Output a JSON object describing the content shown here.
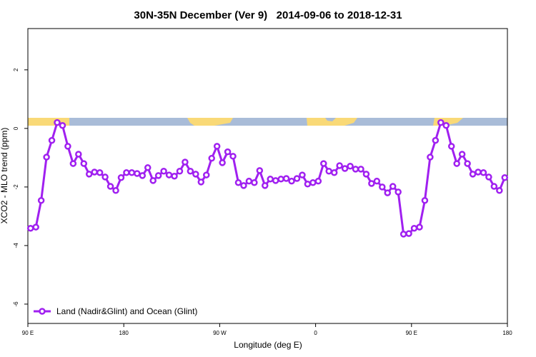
{
  "chart_data": {
    "type": "line",
    "title": "30N-35N December (Ver 9)   2014-09-06 to 2018-12-31",
    "x_label": "Longitude (deg E)",
    "y_label": "XCO2 - MLO trend (ppm)",
    "x": [
      92.5,
      97.5,
      102.5,
      107.5,
      112.5,
      117.5,
      122.5,
      127.5,
      132.5,
      137.5,
      142.5,
      147.5,
      152.5,
      157.5,
      162.5,
      167.5,
      172.5,
      177.5,
      182.5,
      187.5,
      192.5,
      197.5,
      202.5,
      207.5,
      212.5,
      217.5,
      222.5,
      227.5,
      232.5,
      237.5,
      242.5,
      247.5,
      252.5,
      257.5,
      262.5,
      267.5,
      272.5,
      277.5,
      282.5,
      287.5,
      292.5,
      297.5,
      302.5,
      307.5,
      312.5,
      317.5,
      322.5,
      327.5,
      332.5,
      337.5,
      342.5,
      347.5,
      352.5,
      357.5,
      362.5,
      367.5,
      372.5,
      377.5,
      382.5,
      387.5,
      392.5,
      397.5,
      402.5,
      407.5,
      412.5,
      417.5,
      422.5,
      427.5,
      432.5,
      437.5,
      442.5,
      447.5,
      452.5,
      457.5,
      462.5,
      467.5,
      472.5,
      477.5,
      482.5,
      487.5,
      492.5,
      497.5,
      502.5,
      507.5,
      512.5,
      517.5,
      522.5,
      527.5,
      532.5,
      537.5
    ],
    "series": [
      {
        "name": "Land (Nadir&Glint) and Ocean (Glint)",
        "color": "#a020f0",
        "values": [
          -3.41,
          -3.37,
          -2.46,
          -0.98,
          -0.41,
          0.2,
          0.1,
          -0.61,
          -1.2,
          -0.88,
          -1.2,
          -1.56,
          -1.49,
          -1.51,
          -1.66,
          -1.98,
          -2.12,
          -1.68,
          -1.51,
          -1.51,
          -1.54,
          -1.61,
          -1.34,
          -1.78,
          -1.61,
          -1.46,
          -1.59,
          -1.63,
          -1.46,
          -1.15,
          -1.46,
          -1.56,
          -1.83,
          -1.59,
          -1.02,
          -0.61,
          -1.17,
          -0.8,
          -0.95,
          -1.85,
          -1.95,
          -1.8,
          -1.85,
          -1.44,
          -1.95,
          -1.73,
          -1.78,
          -1.73,
          -1.71,
          -1.8,
          -1.71,
          -1.59,
          -1.9,
          -1.85,
          -1.8,
          -1.2,
          -1.46,
          -1.51,
          -1.27,
          -1.37,
          -1.29,
          -1.39,
          -1.39,
          -1.56,
          -1.88,
          -1.8,
          -2.0,
          -2.2,
          -1.98,
          -2.17,
          -3.61,
          -3.59,
          -3.41,
          -3.37,
          -2.46,
          -0.98,
          -0.41,
          0.2,
          0.1,
          -0.61,
          -1.2,
          -0.88,
          -1.2,
          -1.56,
          -1.49,
          -1.51,
          -1.66,
          -1.98,
          -2.12,
          -1.68
        ]
      }
    ],
    "xlim": [
      90,
      540
    ],
    "xticks": [
      {
        "value": 90,
        "label": "90 E"
      },
      180,
      {
        "value": 270,
        "label": "90 W"
      },
      {
        "value": 360,
        "label": "0"
      },
      {
        "value": 450,
        "label": "90 E"
      },
      {
        "value": 540,
        "label": "180"
      }
    ],
    "ylim": [
      -6.66,
      3.41
    ],
    "yticks": [
      -6,
      -4,
      -2,
      0,
      2
    ],
    "legend": "bottom-left"
  }
}
